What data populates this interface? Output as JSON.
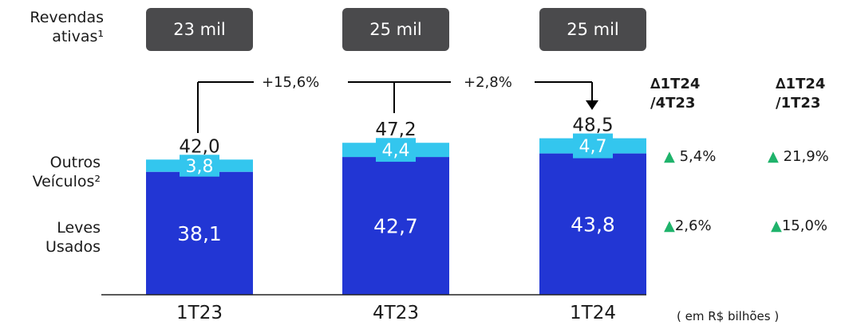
{
  "labels": {
    "revendas_line1": "Revendas",
    "revendas_line2": "ativas¹",
    "outros_line1": "Outros",
    "outros_line2": "Veículos²",
    "leves_line1": "Leves",
    "leves_line2": "Usados",
    "unit": "( em R$ bilhões )"
  },
  "badges": [
    "23 mil",
    "25 mil",
    "25 mil"
  ],
  "growth": {
    "g1": "+15,6%",
    "g2": "+2,8%"
  },
  "headers": {
    "h1_line1": "∆1T24",
    "h1_line2": "/4T23",
    "h2_line1": "∆1T24",
    "h2_line2": "/1T23"
  },
  "variations": {
    "outros_qoq": "5,4%",
    "outros_yoy": "21,9%",
    "leves_qoq": "2,6%",
    "leves_yoy": "15,0%",
    "triangle": "▲"
  },
  "colors": {
    "leves": "#2236d4",
    "outros": "#33c6ee",
    "badge": "#4a4a4c",
    "up": "#1fb36b"
  },
  "chart_data": {
    "type": "bar",
    "stacked": true,
    "categories": [
      "1T23",
      "4T23",
      "1T24"
    ],
    "series": [
      {
        "name": "Leves Usados",
        "values": [
          38.1,
          42.7,
          43.8
        ],
        "labels": [
          "38,1",
          "42,7",
          "43,8"
        ]
      },
      {
        "name": "Outros Veículos²",
        "values": [
          3.8,
          4.4,
          4.7
        ],
        "labels": [
          "3,8",
          "4,4",
          "4,7"
        ]
      }
    ],
    "totals": [
      42.0,
      47.2,
      48.5
    ],
    "total_labels": [
      "42,0",
      "47,2",
      "48,5"
    ],
    "ylim": [
      0,
      50
    ]
  }
}
